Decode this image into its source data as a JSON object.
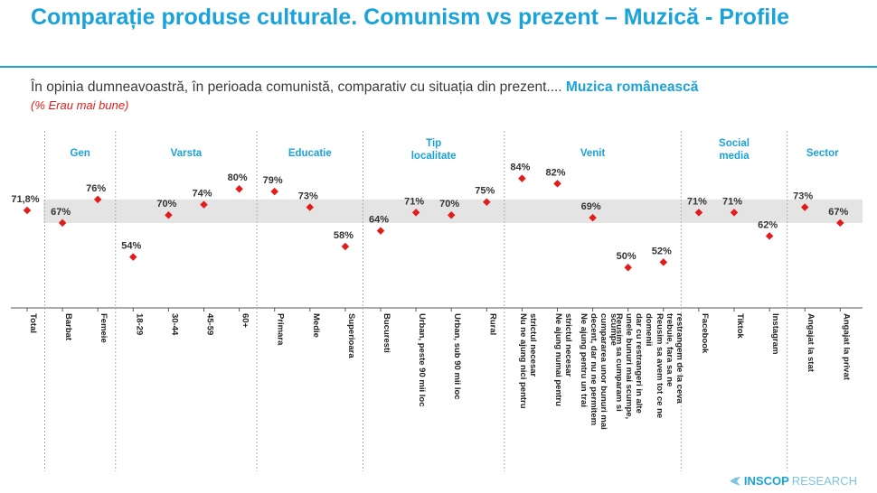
{
  "title": "Comparație produse culturale. Comunism vs prezent – Muzică - Profile",
  "subtitle": {
    "text": "În opinia dumneavoastră, în perioada comunistă, comparativ cu situația din prezent....",
    "highlight": "Muzica românească",
    "note": "(% Erau mai bune)"
  },
  "logo": {
    "bold": "INSCOP",
    "light": "RESEARCH"
  },
  "colors": {
    "accent": "#1aa3d9",
    "marker": "#e21b1b",
    "band": "#e4e4e4"
  },
  "chart_data": {
    "type": "scatter",
    "ylim": [
      0,
      100
    ],
    "reference_band": [
      67,
      76
    ],
    "groups": [
      {
        "label": "",
        "range": [
          0,
          0
        ]
      },
      {
        "label": "Gen",
        "range": [
          1,
          2
        ]
      },
      {
        "label": "Varsta",
        "range": [
          3,
          6
        ]
      },
      {
        "label": "Educatie",
        "range": [
          7,
          9
        ]
      },
      {
        "label": "Tip localitate",
        "range": [
          10,
          13
        ]
      },
      {
        "label": "Venit",
        "range": [
          14,
          18
        ]
      },
      {
        "label": "Social media",
        "range": [
          19,
          21
        ]
      },
      {
        "label": "Sector",
        "range": [
          22,
          23
        ]
      }
    ],
    "categories": [
      "Total",
      "Barbat",
      "Femeie",
      "18-29",
      "30-44",
      "45-59",
      "60+",
      "Primara",
      "Medie",
      "Superioara",
      "Bucuresti",
      "Urban, peste 90 mii loc",
      "Urban, sub 90 mii loc",
      "Rural",
      "Nu ne ajung nici pentru strictul necesar",
      "Ne ajung numai pentru strictul necesar",
      "Ne ajung pentru un trai decent, dar nu ne permitem cumpararea unor bunuri mai scumpe",
      "Reusim sa cumparam si unele bunuri mai scumpe, dar cu restrangeri in alte domenii",
      "Reusim sa avem tot ce ne trebuie, fara sa ne restrangem de la ceva",
      "Facebook",
      "Tiktok",
      "Instagram",
      "Angajat la stat",
      "Angajat la privat"
    ],
    "values": [
      71.8,
      67,
      76,
      54,
      70,
      74,
      80,
      79,
      73,
      58,
      64,
      71,
      70,
      75,
      84,
      82,
      69,
      50,
      52,
      71,
      71,
      62,
      73,
      67
    ],
    "value_labels": [
      "71,8%",
      "67%",
      "76%",
      "54%",
      "70%",
      "74%",
      "80%",
      "79%",
      "73%",
      "58%",
      "64%",
      "71%",
      "70%",
      "75%",
      "84%",
      "82%",
      "69%",
      "50%",
      "52%",
      "71%",
      "71%",
      "62%",
      "73%",
      "67%"
    ]
  }
}
